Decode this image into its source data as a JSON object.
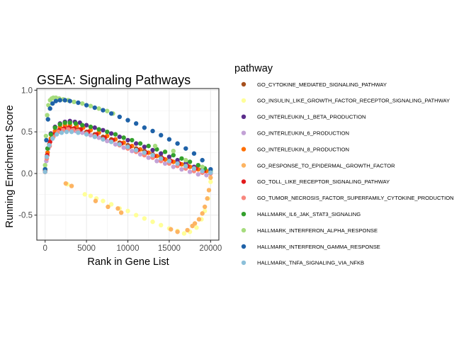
{
  "chart_data": {
    "type": "scatter",
    "title": "GSEA: Signaling Pathways",
    "xlabel": "Rank in Gene List",
    "ylabel": "Running Enrichment Score",
    "xlim": [
      -1000,
      21000
    ],
    "ylim": [
      -0.8,
      1.02
    ],
    "x_ticks": [
      0,
      5000,
      10000,
      15000,
      20000
    ],
    "x_tick_labels": [
      "0",
      "5000",
      "10000",
      "15000",
      "20000"
    ],
    "y_ticks": [
      -0.5,
      0.0,
      0.5,
      1.0
    ],
    "y_tick_labels": [
      "-0.5",
      "0.0",
      "0.5",
      "1.0"
    ],
    "grid": true,
    "legend": {
      "title": "pathway",
      "position": "right"
    },
    "series": [
      {
        "name": "GO_CYTOKINE_MEDIATED_SIGNALING_PATHWAY",
        "color": "#a6501d",
        "points": [
          [
            0,
            0.02
          ],
          [
            200,
            0.2
          ],
          [
            500,
            0.35
          ],
          [
            1000,
            0.45
          ],
          [
            1500,
            0.5
          ],
          [
            2000,
            0.53
          ],
          [
            2500,
            0.55
          ],
          [
            3000,
            0.55
          ],
          [
            3500,
            0.54
          ],
          [
            4000,
            0.53
          ],
          [
            5000,
            0.5
          ],
          [
            6000,
            0.47
          ],
          [
            7000,
            0.44
          ],
          [
            8000,
            0.41
          ],
          [
            9000,
            0.37
          ],
          [
            10000,
            0.34
          ],
          [
            11000,
            0.3
          ],
          [
            12000,
            0.27
          ],
          [
            13000,
            0.23
          ],
          [
            14000,
            0.2
          ],
          [
            15000,
            0.16
          ],
          [
            16000,
            0.13
          ],
          [
            17000,
            0.09
          ],
          [
            18000,
            0.06
          ],
          [
            19000,
            0.03
          ],
          [
            20000,
            0.01
          ]
        ]
      },
      {
        "name": "GO_INSULIN_LIKE_GROWTH_FACTOR_RECEPTOR_SIGNALING_PATHWAY",
        "color": "#ffff99",
        "points": [
          [
            2700,
            -0.13
          ],
          [
            4800,
            -0.25
          ],
          [
            5500,
            -0.27
          ],
          [
            6200,
            -0.3
          ],
          [
            7000,
            -0.33
          ],
          [
            8000,
            -0.37
          ],
          [
            9000,
            -0.42
          ],
          [
            10000,
            -0.45
          ],
          [
            11000,
            -0.5
          ],
          [
            12000,
            -0.54
          ],
          [
            13000,
            -0.58
          ],
          [
            14000,
            -0.62
          ],
          [
            15000,
            -0.66
          ],
          [
            16000,
            -0.69
          ],
          [
            16800,
            -0.72
          ],
          [
            17500,
            -0.7
          ],
          [
            18300,
            -0.65
          ],
          [
            18900,
            -0.55
          ],
          [
            19300,
            -0.45
          ],
          [
            19700,
            -0.3
          ],
          [
            20000,
            -0.1
          ]
        ]
      },
      {
        "name": "GO_INTERLEUKIN_1_BETA_PRODUCTION",
        "color": "#5b2d8b",
        "points": [
          [
            0,
            0.05
          ],
          [
            300,
            0.3
          ],
          [
            700,
            0.48
          ],
          [
            1200,
            0.56
          ],
          [
            1800,
            0.6
          ],
          [
            2400,
            0.62
          ],
          [
            3000,
            0.63
          ],
          [
            3600,
            0.62
          ],
          [
            4200,
            0.61
          ],
          [
            5000,
            0.58
          ],
          [
            6000,
            0.55
          ],
          [
            7000,
            0.52
          ],
          [
            8000,
            0.48
          ],
          [
            9000,
            0.44
          ],
          [
            10000,
            0.4
          ],
          [
            11000,
            0.36
          ],
          [
            12000,
            0.32
          ],
          [
            13000,
            0.28
          ],
          [
            14000,
            0.24
          ],
          [
            15000,
            0.2
          ],
          [
            16000,
            0.16
          ],
          [
            17000,
            0.12
          ],
          [
            18000,
            0.08
          ],
          [
            19000,
            0.05
          ],
          [
            20000,
            0.02
          ]
        ]
      },
      {
        "name": "GO_INTERLEUKIN_6_PRODUCTION",
        "color": "#c3a2d6",
        "points": [
          [
            0,
            0.03
          ],
          [
            150,
            0.15
          ],
          [
            400,
            0.3
          ],
          [
            800,
            0.42
          ],
          [
            1300,
            0.49
          ],
          [
            1900,
            0.52
          ],
          [
            2500,
            0.53
          ],
          [
            3100,
            0.52
          ],
          [
            3700,
            0.51
          ],
          [
            4500,
            0.49
          ],
          [
            5500,
            0.46
          ],
          [
            6500,
            0.43
          ],
          [
            7500,
            0.39
          ],
          [
            8500,
            0.35
          ],
          [
            9500,
            0.31
          ],
          [
            10500,
            0.27
          ],
          [
            11500,
            0.23
          ],
          [
            12500,
            0.19
          ],
          [
            13500,
            0.15
          ],
          [
            14500,
            0.12
          ],
          [
            15500,
            0.08
          ],
          [
            16500,
            0.05
          ],
          [
            17500,
            0.02
          ],
          [
            18500,
            -0.01
          ],
          [
            19500,
            -0.02
          ],
          [
            20000,
            0.0
          ]
        ]
      },
      {
        "name": "GO_INTERLEUKIN_8_PRODUCTION",
        "color": "#ff6f00",
        "points": [
          [
            0,
            0.04
          ],
          [
            300,
            0.25
          ],
          [
            700,
            0.42
          ],
          [
            1200,
            0.51
          ],
          [
            1800,
            0.56
          ],
          [
            2400,
            0.58
          ],
          [
            3000,
            0.58
          ],
          [
            3800,
            0.57
          ],
          [
            4600,
            0.55
          ],
          [
            5500,
            0.52
          ],
          [
            6500,
            0.49
          ],
          [
            7500,
            0.45
          ],
          [
            8500,
            0.41
          ],
          [
            9500,
            0.37
          ],
          [
            10500,
            0.33
          ],
          [
            11500,
            0.29
          ],
          [
            12500,
            0.25
          ],
          [
            13500,
            0.21
          ],
          [
            14500,
            0.17
          ],
          [
            15500,
            0.14
          ],
          [
            16500,
            0.11
          ],
          [
            17500,
            0.08
          ],
          [
            18500,
            0.05
          ],
          [
            19500,
            0.03
          ],
          [
            20000,
            0.01
          ]
        ]
      },
      {
        "name": "GO_RESPONSE_TO_EPIDERMAL_GROWTH_FACTOR",
        "color": "#fdb462",
        "points": [
          [
            2500,
            -0.12
          ],
          [
            3200,
            -0.15
          ],
          [
            6100,
            -0.33
          ],
          [
            7600,
            -0.4
          ],
          [
            8800,
            -0.42
          ],
          [
            9200,
            -0.47
          ],
          [
            15200,
            -0.67
          ],
          [
            16000,
            -0.7
          ],
          [
            17200,
            -0.68
          ],
          [
            17800,
            -0.63
          ],
          [
            18100,
            -0.6
          ],
          [
            18600,
            -0.55
          ],
          [
            19000,
            -0.48
          ],
          [
            19300,
            -0.4
          ],
          [
            19600,
            -0.3
          ],
          [
            19800,
            -0.2
          ],
          [
            20000,
            -0.05
          ]
        ]
      },
      {
        "name": "GO_TOLL_LIKE_RECEPTOR_SIGNALING_PATHWAY",
        "color": "#e31a1c",
        "points": [
          [
            0,
            0.03
          ],
          [
            250,
            0.22
          ],
          [
            600,
            0.38
          ],
          [
            1100,
            0.47
          ],
          [
            1700,
            0.52
          ],
          [
            2300,
            0.54
          ],
          [
            2900,
            0.55
          ],
          [
            3500,
            0.54
          ],
          [
            4300,
            0.53
          ],
          [
            5200,
            0.5
          ],
          [
            6200,
            0.47
          ],
          [
            7200,
            0.43
          ],
          [
            8200,
            0.4
          ],
          [
            9200,
            0.36
          ],
          [
            10200,
            0.32
          ],
          [
            11200,
            0.28
          ],
          [
            12200,
            0.25
          ],
          [
            13200,
            0.21
          ],
          [
            14200,
            0.18
          ],
          [
            15200,
            0.15
          ],
          [
            16200,
            0.12
          ],
          [
            17200,
            0.09
          ],
          [
            18200,
            0.06
          ],
          [
            19200,
            0.03
          ],
          [
            20000,
            0.01
          ]
        ]
      },
      {
        "name": "GO_TUMOR_NECROSIS_FACTOR_SUPERFAMILY_CYTOKINE_PRODUCTION",
        "color": "#f8877e",
        "points": [
          [
            0,
            0.02
          ],
          [
            200,
            0.18
          ],
          [
            550,
            0.33
          ],
          [
            1000,
            0.44
          ],
          [
            1600,
            0.5
          ],
          [
            2200,
            0.52
          ],
          [
            2800,
            0.53
          ],
          [
            3400,
            0.52
          ],
          [
            4000,
            0.51
          ],
          [
            5000,
            0.48
          ],
          [
            6000,
            0.45
          ],
          [
            7000,
            0.41
          ],
          [
            8000,
            0.38
          ],
          [
            9000,
            0.34
          ],
          [
            10000,
            0.3
          ],
          [
            11000,
            0.26
          ],
          [
            12000,
            0.22
          ],
          [
            13000,
            0.19
          ],
          [
            14000,
            0.15
          ],
          [
            15000,
            0.12
          ],
          [
            16000,
            0.09
          ],
          [
            17000,
            0.06
          ],
          [
            18000,
            0.03
          ],
          [
            19000,
            0.01
          ],
          [
            20000,
            0.0
          ]
        ]
      },
      {
        "name": "HALLMARK_IL6_JAK_STAT3_SIGNALING",
        "color": "#33a02c",
        "points": [
          [
            0,
            0.05
          ],
          [
            300,
            0.3
          ],
          [
            700,
            0.47
          ],
          [
            1200,
            0.55
          ],
          [
            1800,
            0.59
          ],
          [
            2400,
            0.61
          ],
          [
            3000,
            0.61
          ],
          [
            3700,
            0.6
          ],
          [
            4500,
            0.58
          ],
          [
            5500,
            0.56
          ],
          [
            6500,
            0.53
          ],
          [
            7500,
            0.5
          ],
          [
            8500,
            0.47
          ],
          [
            9500,
            0.43
          ],
          [
            10500,
            0.4
          ],
          [
            11500,
            0.36
          ],
          [
            12500,
            0.33
          ],
          [
            13500,
            0.29
          ],
          [
            14500,
            0.26
          ],
          [
            15500,
            0.22
          ],
          [
            16500,
            0.18
          ],
          [
            17500,
            0.14
          ],
          [
            18500,
            0.1
          ],
          [
            19300,
            0.06
          ],
          [
            20000,
            0.03
          ]
        ]
      },
      {
        "name": "HALLMARK_INTERFERON_ALPHA_RESPONSE",
        "color": "#a6dc7e",
        "points": [
          [
            0,
            0.1
          ],
          [
            100,
            0.45
          ],
          [
            250,
            0.7
          ],
          [
            400,
            0.82
          ],
          [
            600,
            0.88
          ],
          [
            800,
            0.9
          ],
          [
            1000,
            0.91
          ],
          [
            1300,
            0.91
          ],
          [
            1700,
            0.9
          ],
          [
            2200,
            0.89
          ],
          [
            2800,
            0.88
          ],
          [
            3500,
            0.86
          ],
          [
            4500,
            0.84
          ],
          [
            5500,
            0.81
          ],
          [
            6500,
            0.78
          ],
          [
            7500,
            0.75
          ],
          [
            8200,
            0.72
          ],
          [
            13300,
            0.33
          ],
          [
            15500,
            0.27
          ],
          [
            17000,
            0.16
          ],
          [
            19000,
            0.08
          ],
          [
            20000,
            0.02
          ]
        ]
      },
      {
        "name": "HALLMARK_INTERFERON_GAMMA_RESPONSE",
        "color": "#1f62a8",
        "points": [
          [
            0,
            0.05
          ],
          [
            150,
            0.4
          ],
          [
            350,
            0.65
          ],
          [
            600,
            0.78
          ],
          [
            900,
            0.84
          ],
          [
            1300,
            0.87
          ],
          [
            1800,
            0.88
          ],
          [
            2400,
            0.88
          ],
          [
            3000,
            0.87
          ],
          [
            4000,
            0.85
          ],
          [
            5000,
            0.82
          ],
          [
            6000,
            0.79
          ],
          [
            7000,
            0.76
          ],
          [
            8000,
            0.72
          ],
          [
            9000,
            0.68
          ],
          [
            10000,
            0.64
          ],
          [
            11000,
            0.6
          ],
          [
            12000,
            0.55
          ],
          [
            13000,
            0.51
          ],
          [
            14000,
            0.46
          ],
          [
            15000,
            0.41
          ],
          [
            16000,
            0.36
          ],
          [
            17000,
            0.3
          ],
          [
            18000,
            0.24
          ],
          [
            19000,
            0.16
          ],
          [
            20000,
            0.05
          ]
        ]
      },
      {
        "name": "HALLMARK_TNFA_SIGNALING_VIA_NFKB",
        "color": "#8cc0da",
        "points": [
          [
            0,
            0.02
          ],
          [
            200,
            0.2
          ],
          [
            500,
            0.34
          ],
          [
            900,
            0.42
          ],
          [
            1400,
            0.47
          ],
          [
            2000,
            0.49
          ],
          [
            2600,
            0.5
          ],
          [
            3200,
            0.5
          ],
          [
            4000,
            0.49
          ],
          [
            5000,
            0.47
          ],
          [
            6000,
            0.44
          ],
          [
            7000,
            0.41
          ],
          [
            8000,
            0.38
          ],
          [
            9000,
            0.35
          ],
          [
            10000,
            0.32
          ],
          [
            11000,
            0.28
          ],
          [
            12000,
            0.25
          ],
          [
            13000,
            0.22
          ],
          [
            14000,
            0.18
          ],
          [
            15000,
            0.15
          ],
          [
            16000,
            0.12
          ],
          [
            17000,
            0.09
          ],
          [
            18000,
            0.06
          ],
          [
            19000,
            0.03
          ],
          [
            20000,
            0.01
          ]
        ]
      }
    ]
  }
}
